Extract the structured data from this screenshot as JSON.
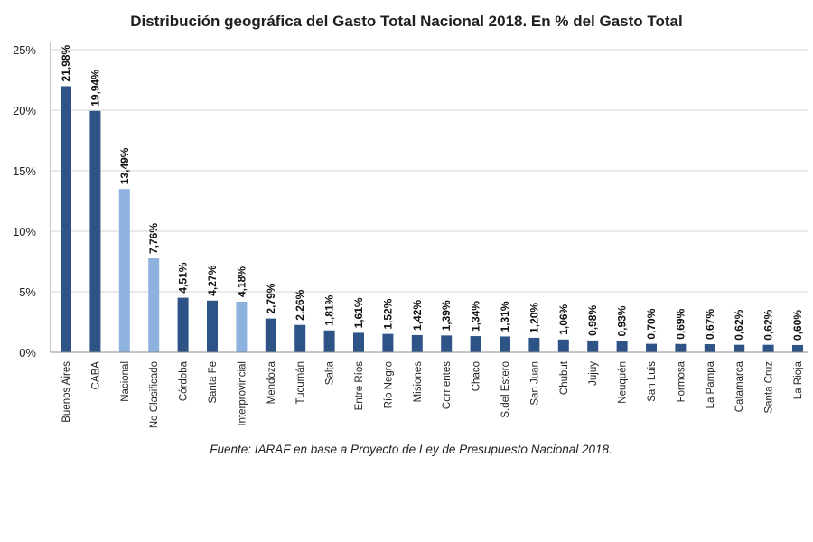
{
  "chart_data": {
    "type": "bar",
    "title": "Distribución geográfica del Gasto Total Nacional 2018. En % del Gasto Total",
    "source": "Fuente: IARAF en base a Proyecto de Ley de Presupuesto Nacional 2018.",
    "xlabel": "",
    "ylabel": "",
    "ylim": [
      0,
      25
    ],
    "yticks": [
      0,
      5,
      10,
      15,
      20,
      25
    ],
    "ytick_labels": [
      "0%",
      "5%",
      "10%",
      "15%",
      "20%",
      "25%"
    ],
    "grid": true,
    "legend": "none",
    "categories": [
      "Buenos Aires",
      "CABA",
      "Nacional",
      "No Clasificado",
      "Córdoba",
      "Santa Fe",
      "Interprovincial",
      "Mendoza",
      "Tucumán",
      "Salta",
      "Entre Ríos",
      "Río Negro",
      "Misiones",
      "Corrientes",
      "Chaco",
      "S.del Estero",
      "San Juan",
      "Chubut",
      "Jujuy",
      "Neuquén",
      "San Luis",
      "Formosa",
      "La Pampa",
      "Catamarca",
      "Santa Cruz",
      "La Rioja"
    ],
    "values": [
      21.98,
      19.94,
      13.49,
      7.76,
      4.51,
      4.27,
      4.18,
      2.79,
      2.26,
      1.81,
      1.61,
      1.52,
      1.42,
      1.39,
      1.34,
      1.31,
      1.2,
      1.06,
      0.98,
      0.93,
      0.7,
      0.69,
      0.67,
      0.62,
      0.62,
      0.6
    ],
    "value_labels": [
      "21,98%",
      "19,94%",
      "13,49%",
      "7,76%",
      "4,51%",
      "4,27%",
      "4,18%",
      "2,79%",
      "2,26%",
      "1,81%",
      "1,61%",
      "1,52%",
      "1,42%",
      "1,39%",
      "1,34%",
      "1,31%",
      "1,20%",
      "1,06%",
      "0,98%",
      "0,93%",
      "0,70%",
      "0,69%",
      "0,67%",
      "0,62%",
      "0,62%",
      "0,60%"
    ],
    "bar_colors": [
      "#2e5487",
      "#2e5487",
      "#8db2e0",
      "#8db2e0",
      "#2e5487",
      "#2e5487",
      "#8db2e0",
      "#2e5487",
      "#2e5487",
      "#2e5487",
      "#2e5487",
      "#2e5487",
      "#2e5487",
      "#2e5487",
      "#2e5487",
      "#2e5487",
      "#2e5487",
      "#2e5487",
      "#2e5487",
      "#2e5487",
      "#2e5487",
      "#2e5487",
      "#2e5487",
      "#2e5487",
      "#2e5487",
      "#2e5487"
    ],
    "grid_color": "#d4d4d4",
    "axis_color": "#8c8c8c"
  }
}
